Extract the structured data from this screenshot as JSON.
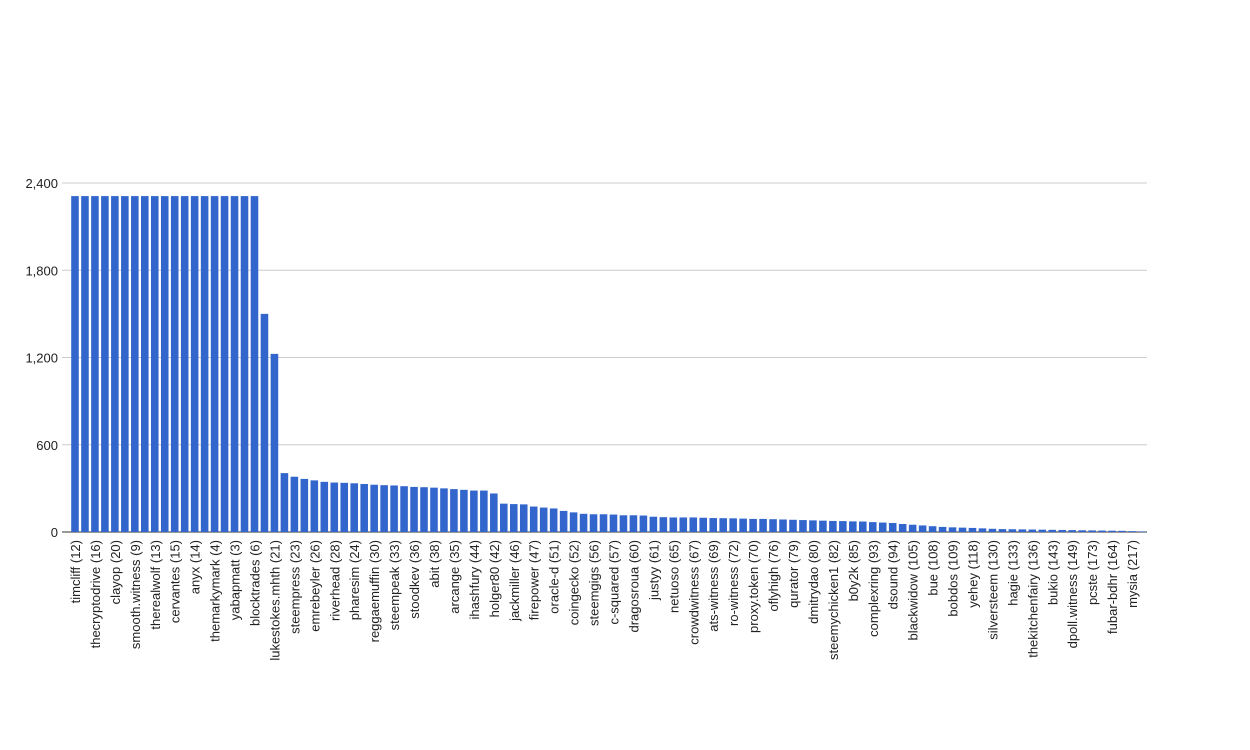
{
  "chart_data": {
    "type": "bar",
    "categories": [
      "timcliff (12)",
      null,
      "thecryptodrive (16)",
      null,
      "clayop (20)",
      null,
      "smooth.witness (9)",
      null,
      "therealwolf (13)",
      null,
      "cervantes (15)",
      null,
      "anyx (14)",
      null,
      "themarkymark (4)",
      null,
      "yabapmatt (3)",
      null,
      "blocktrades (6)",
      null,
      "lukestokes.mhth (21)",
      null,
      "steempress (23)",
      null,
      "emrebeyler (26)",
      null,
      "riverhead (28)",
      null,
      "pharesim (24)",
      null,
      "reggaemuffin (30)",
      null,
      "steempeak (33)",
      null,
      "stoodkev (36)",
      null,
      "abit (38)",
      null,
      "arcange (35)",
      null,
      "ihashfury (44)",
      null,
      "holger80 (42)",
      null,
      "jackmiller (46)",
      null,
      "firepower (47)",
      null,
      "oracle-d (51)",
      null,
      "coingecko (52)",
      null,
      "steemgigs (56)",
      null,
      "c-squared (57)",
      null,
      "dragosroua (60)",
      null,
      "justyy (61)",
      null,
      "netuoso (65)",
      null,
      "crowdwitness (67)",
      null,
      "ats-witness (69)",
      null,
      "ro-witness (72)",
      null,
      "proxy.token (70)",
      null,
      "oflyhigh (76)",
      null,
      "qurator (79)",
      null,
      "dmitrydao (80)",
      null,
      "steemychicken1 (82)",
      null,
      "b0y2k (85)",
      null,
      "complexring (93)",
      null,
      "dsound (94)",
      null,
      "blackwidow (105)",
      null,
      "bue (108)",
      null,
      "bobdos (109)",
      null,
      "yehey (118)",
      null,
      "silversteem (130)",
      null,
      "hagie (133)",
      null,
      "thekitchenfairy (136)",
      null,
      "bukio (143)",
      null,
      "dpoll.witness (149)",
      null,
      "pcste (173)",
      null,
      "fubar-bdhr (164)",
      null,
      "mysia (217)",
      null
    ],
    "values": [
      2310,
      2310,
      2310,
      2310,
      2310,
      2310,
      2310,
      2310,
      2310,
      2310,
      2310,
      2310,
      2310,
      2310,
      2310,
      2310,
      2310,
      2310,
      2310,
      1500,
      1225,
      405,
      380,
      365,
      355,
      345,
      340,
      338,
      335,
      330,
      325,
      322,
      320,
      315,
      310,
      308,
      305,
      300,
      295,
      290,
      285,
      285,
      265,
      195,
      192,
      190,
      175,
      168,
      162,
      145,
      135,
      125,
      122,
      122,
      120,
      115,
      115,
      113,
      105,
      102,
      100,
      100,
      100,
      98,
      96,
      95,
      94,
      92,
      90,
      90,
      88,
      86,
      84,
      82,
      80,
      78,
      76,
      75,
      73,
      72,
      68,
      65,
      62,
      55,
      50,
      45,
      40,
      35,
      32,
      30,
      28,
      25,
      22,
      20,
      19,
      18,
      17,
      16,
      15,
      14,
      13,
      12,
      11,
      10,
      9,
      8,
      6,
      4
    ],
    "color": "#3366cc",
    "ylim": [
      0,
      2400
    ],
    "yticks": [
      0,
      600,
      {
        "value": 1200,
        "label": "1,200"
      },
      {
        "value": 1800,
        "label": "1,800"
      },
      {
        "value": 2400,
        "label": "2,400"
      }
    ],
    "grid": true
  }
}
